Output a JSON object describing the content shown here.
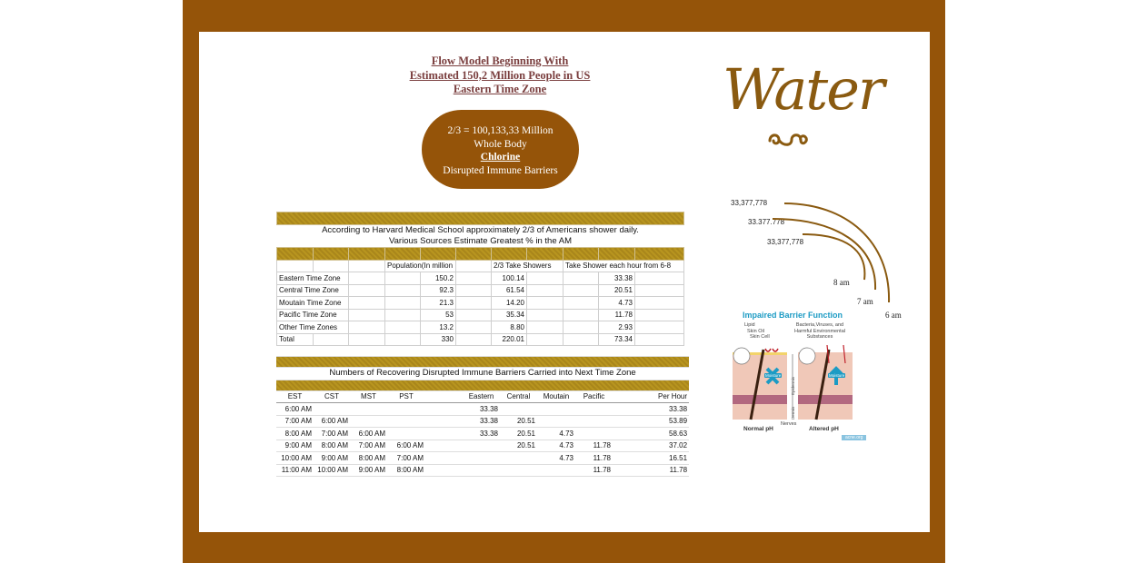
{
  "title": [
    "Flow Model Beginning With",
    "Estimated 150,2 Million People in US",
    "Eastern Time Zone"
  ],
  "oval": {
    "line1": "2/3 = 100,133,33 Million",
    "line2": "Whole Body",
    "line3": "Chlorine",
    "line4": "Disrupted Immune Barriers"
  },
  "table1": {
    "title1": "According  to Harvard Medical School approximately 2/3 of Americans shower daily.",
    "title2": "Various Sources Estimate Greatest % in the AM",
    "headers": {
      "population": "Population(In million",
      "take": "2/3 Take Showers",
      "hour": "Take Shower each hour from 6-8"
    },
    "rows": [
      [
        "Eastern Time Zone",
        "150.2",
        "100.14",
        "33.38"
      ],
      [
        "Central Time Zone",
        "92.3",
        "61.54",
        "20.51"
      ],
      [
        "Moutain Time Zone",
        "21.3",
        "14.20",
        "4.73"
      ],
      [
        "Pacific Time Zone",
        "53",
        "35.34",
        "11.78"
      ],
      [
        "Other Time Zones",
        "13.2",
        "8.80",
        "2.93"
      ],
      [
        "Total",
        "330",
        "220.01",
        "73.34"
      ]
    ]
  },
  "table2": {
    "title": "Numbers of Recovering Disrupted Immune Barriers Carried into Next Time Zone",
    "headers": [
      "EST",
      "CST",
      "MST",
      "PST",
      "",
      "Eastern",
      "Central",
      "Moutain",
      "Pacific",
      "",
      "Per Hour"
    ],
    "rows": [
      [
        "6:00 AM",
        "",
        "",
        "",
        "",
        "33.38",
        "",
        "",
        "",
        "",
        "33.38"
      ],
      [
        "7:00 AM",
        "6:00 AM",
        "",
        "",
        "",
        "33.38",
        "20.51",
        "",
        "",
        "",
        "53.89"
      ],
      [
        "8:00 AM",
        "7:00 AM",
        "6:00 AM",
        "",
        "",
        "33.38",
        "20.51",
        "4.73",
        "",
        "",
        "58.63"
      ],
      [
        "9:00 AM",
        "8:00 AM",
        "7:00 AM",
        "6:00 AM",
        "",
        "",
        "20.51",
        "4.73",
        "11.78",
        "",
        "37.02"
      ],
      [
        "10:00 AM",
        "9:00 AM",
        "8:00 AM",
        "7:00 AM",
        "",
        "",
        "",
        "4.73",
        "11.78",
        "",
        "16.51"
      ],
      [
        "11:00 AM",
        "10:00 AM",
        "9:00 AM",
        "8:00 AM",
        "",
        "",
        "",
        "",
        "11.78",
        "",
        "11.78"
      ]
    ]
  },
  "water": "Water",
  "flow": {
    "v1": "33,377,778",
    "v2": "33.377.778",
    "v3": "33,377,778",
    "t8": "8 am",
    "t7": "7 am",
    "t6": "6 am"
  },
  "barrier": {
    "title": "Impaired Barrier Function",
    "lipid": "Lipid",
    "oil": "Skin Oil",
    "cell": "Skin Cell",
    "bact": "Bacteria,Viruses, and",
    "harm": "Harmful Environmental",
    "subs": "Substances",
    "moist": "Moisture",
    "epi": "Epidermis",
    "derm": "Dermis",
    "nerves": "Nerves",
    "normal": "Normal pH",
    "altered": "Altered pH",
    "credit": "acne.org"
  },
  "colors": {
    "frame": "#955409",
    "gold": "#b08d1e",
    "blue": "#1c9bc4"
  }
}
